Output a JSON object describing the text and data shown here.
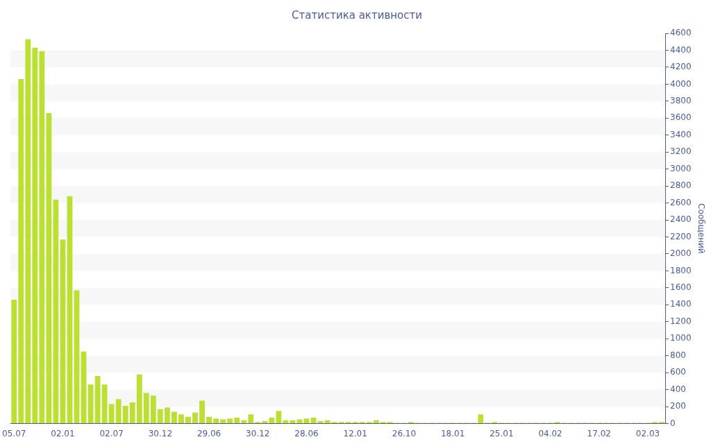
{
  "chart_data": {
    "type": "bar",
    "title": "Статистика активности",
    "ylabel": "Сообщений",
    "categories": [
      "05.07",
      null,
      null,
      null,
      null,
      null,
      null,
      "02.01",
      null,
      null,
      null,
      null,
      null,
      null,
      "02.07",
      null,
      null,
      null,
      null,
      null,
      null,
      "30.12",
      null,
      null,
      null,
      null,
      null,
      null,
      "29.06",
      null,
      null,
      null,
      null,
      null,
      null,
      "30.12",
      null,
      null,
      null,
      null,
      null,
      null,
      "28.06",
      null,
      null,
      null,
      null,
      null,
      null,
      "12.01",
      null,
      null,
      null,
      null,
      null,
      null,
      "26.10",
      null,
      null,
      null,
      null,
      null,
      null,
      "18.01",
      null,
      null,
      null,
      null,
      null,
      null,
      "25.01",
      null,
      null,
      null,
      null,
      null,
      null,
      "04.02",
      null,
      null,
      null,
      null,
      null,
      null,
      "17.02",
      null,
      null,
      null,
      null,
      null,
      null,
      "02.03",
      null,
      null
    ],
    "values": [
      1460,
      4060,
      4530,
      4430,
      4390,
      3660,
      2640,
      2170,
      2680,
      1570,
      850,
      460,
      560,
      460,
      230,
      290,
      210,
      250,
      580,
      360,
      330,
      170,
      190,
      140,
      110,
      80,
      130,
      270,
      80,
      60,
      50,
      60,
      70,
      40,
      110,
      20,
      30,
      70,
      150,
      40,
      40,
      50,
      60,
      70,
      30,
      40,
      20,
      20,
      20,
      20,
      20,
      20,
      40,
      20,
      20,
      10,
      10,
      20,
      10,
      10,
      10,
      10,
      10,
      10,
      10,
      10,
      10,
      110,
      10,
      20,
      10,
      10,
      10,
      10,
      10,
      10,
      10,
      10,
      20,
      10,
      10,
      10,
      10,
      10,
      10,
      10,
      10,
      10,
      10,
      10,
      10,
      10,
      20,
      20
    ],
    "color": "#bbe033",
    "ylim": [
      0,
      4600
    ],
    "yticks": [
      0,
      200,
      400,
      600,
      800,
      1000,
      1200,
      1400,
      1600,
      1800,
      2000,
      2200,
      2400,
      2600,
      2800,
      3000,
      3200,
      3400,
      3600,
      3800,
      4000,
      4200,
      4400,
      4600
    ],
    "legend": false
  }
}
